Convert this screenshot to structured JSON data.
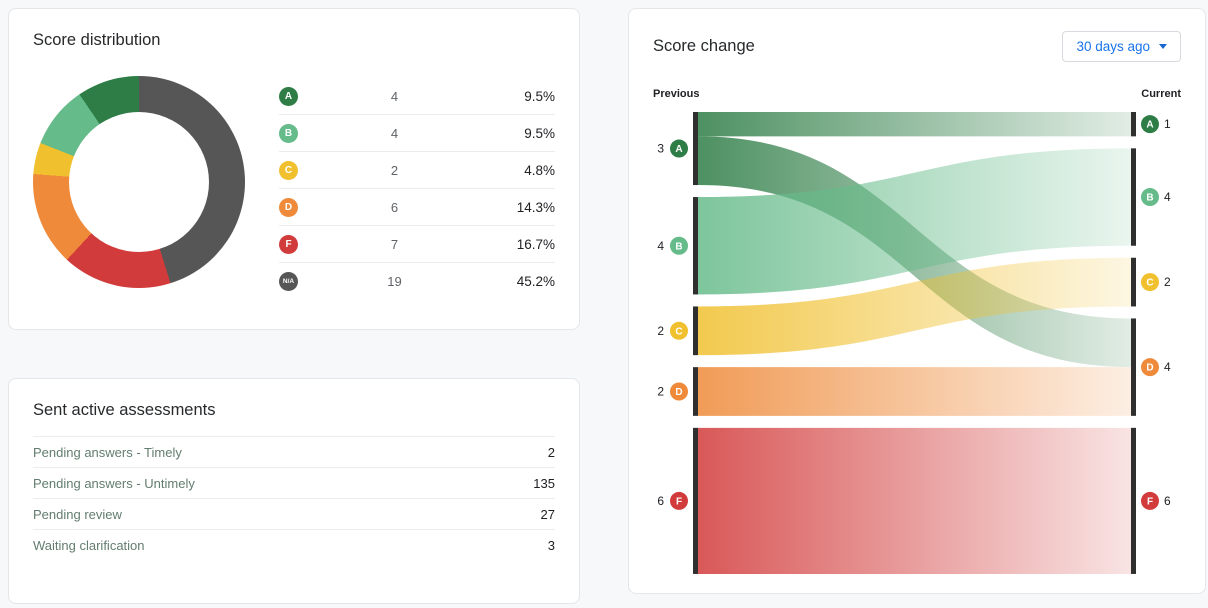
{
  "colors": {
    "A": "#2e7d46",
    "B": "#66bb8a",
    "C": "#f0c02f",
    "D": "#ee8a39",
    "F": "#d23b3b",
    "NA": "#565656",
    "node_bar": "#2f2f2f",
    "accent_blue": "#1a73e8"
  },
  "score_distribution": {
    "title": "Score distribution",
    "rows": [
      {
        "grade": "A",
        "grade_label": "A",
        "count": 4,
        "pct": 9.5
      },
      {
        "grade": "B",
        "grade_label": "B",
        "count": 4,
        "pct": 9.5
      },
      {
        "grade": "C",
        "grade_label": "C",
        "count": 2,
        "pct": 4.8
      },
      {
        "grade": "D",
        "grade_label": "D",
        "count": 6,
        "pct": 14.3
      },
      {
        "grade": "F",
        "grade_label": "F",
        "count": 7,
        "pct": 16.7
      },
      {
        "grade": "NA",
        "grade_label": "N/A",
        "count": 19,
        "pct": 45.2
      }
    ]
  },
  "assessments": {
    "title": "Sent active assessments",
    "rows": [
      {
        "label": "Pending answers - Timely",
        "value": 2
      },
      {
        "label": "Pending answers - Untimely",
        "value": 135
      },
      {
        "label": "Pending review",
        "value": 27
      },
      {
        "label": "Waiting clarification",
        "value": 3
      }
    ]
  },
  "score_change": {
    "title": "Score change",
    "period_selector": "30 days ago",
    "left_header": "Previous",
    "right_header": "Current"
  },
  "chart_data": [
    {
      "type": "pie",
      "subtype": "donut",
      "title": "Score distribution",
      "labels": [
        "N/A",
        "F",
        "D",
        "C",
        "B",
        "A"
      ],
      "values": [
        19,
        7,
        6,
        2,
        4,
        4
      ],
      "percentages": [
        45.2,
        16.7,
        14.3,
        4.8,
        9.5,
        9.5
      ],
      "start_angle_deg": 0,
      "direction": "clockwise",
      "legend_position": "right-table"
    },
    {
      "type": "sankey",
      "title": "Score change",
      "left_header": "Previous",
      "right_header": "Current",
      "left_nodes": [
        {
          "grade": "A",
          "value": 3
        },
        {
          "grade": "B",
          "value": 4
        },
        {
          "grade": "C",
          "value": 2
        },
        {
          "grade": "D",
          "value": 2
        },
        {
          "grade": "F",
          "value": 6
        }
      ],
      "right_nodes": [
        {
          "grade": "A",
          "value": 1
        },
        {
          "grade": "B",
          "value": 4
        },
        {
          "grade": "C",
          "value": 2
        },
        {
          "grade": "D",
          "value": 4
        },
        {
          "grade": "F",
          "value": 6
        }
      ],
      "flows": [
        {
          "from": "A",
          "to": "A",
          "value": 1
        },
        {
          "from": "A",
          "to": "D",
          "value": 2
        },
        {
          "from": "B",
          "to": "B",
          "value": 4
        },
        {
          "from": "C",
          "to": "C",
          "value": 2
        },
        {
          "from": "D",
          "to": "D",
          "value": 2
        },
        {
          "from": "F",
          "to": "F",
          "value": 6
        }
      ]
    }
  ]
}
